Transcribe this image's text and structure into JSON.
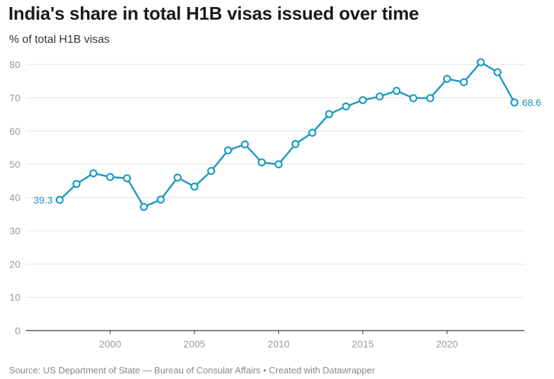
{
  "header": {
    "title": "India's share in total H1B visas issued over time",
    "subtitle": "% of total H1B visas"
  },
  "footer": {
    "source": "Source: US Department of State — Bureau of Consular Affairs • Created with Datawrapper"
  },
  "colors": {
    "line": "#1b9ac2",
    "label": "#1b8fb3",
    "grid": "#e3e3e3",
    "axis": "#333333"
  },
  "chart_data": {
    "type": "line",
    "title": "India's share in total H1B visas issued over time",
    "subtitle": "% of total H1B visas",
    "xlabel": "",
    "ylabel": "",
    "xlim": [
      1995,
      2024.6
    ],
    "ylim": [
      0,
      80
    ],
    "grid": true,
    "x_ticks": [
      2000,
      2005,
      2010,
      2015,
      2020
    ],
    "y_ticks": [
      0,
      10,
      20,
      30,
      40,
      50,
      60,
      70,
      80
    ],
    "x": [
      1997,
      1998,
      1999,
      2000,
      2001,
      2002,
      2003,
      2004,
      2005,
      2006,
      2007,
      2008,
      2009,
      2010,
      2011,
      2012,
      2013,
      2014,
      2015,
      2016,
      2017,
      2018,
      2019,
      2020,
      2021,
      2022,
      2023,
      2024
    ],
    "series": [
      {
        "values": [
          39.3,
          44.1,
          47.3,
          46.2,
          45.8,
          37.2,
          39.4,
          46.0,
          43.3,
          48.0,
          54.2,
          56.0,
          50.6,
          50.0,
          56.1,
          59.5,
          65.1,
          67.4,
          69.3,
          70.4,
          72.1,
          69.9,
          69.9,
          75.7,
          74.7,
          80.7,
          77.7,
          68.6
        ]
      }
    ],
    "annotations": {
      "first": "39.3",
      "last": "68.6"
    }
  }
}
